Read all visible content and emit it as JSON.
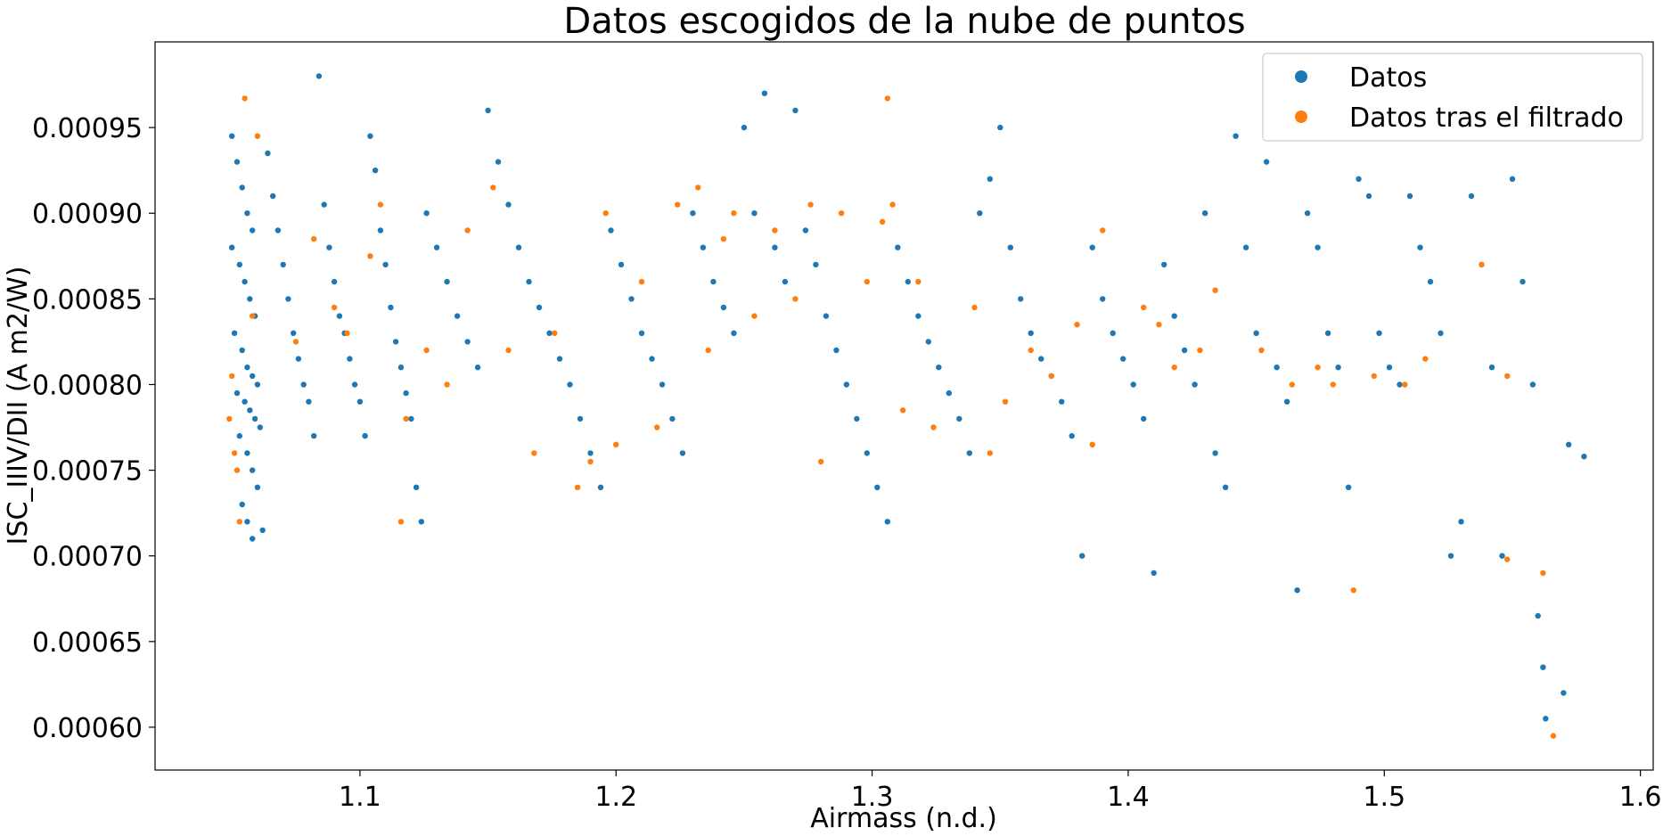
{
  "chart_data": {
    "type": "scatter",
    "title": "Datos escogidos de la nube de puntos",
    "xlabel": "Airmass (n.d.)",
    "ylabel": "ISC_IIIV/DII (A m2/W)",
    "xlim": [
      1.02,
      1.605
    ],
    "ylim": [
      0.000575,
      0.001
    ],
    "xticks": [
      "1.1",
      "1.2",
      "1.3",
      "1.4",
      "1.5",
      "1.6"
    ],
    "yticks": [
      "0.00060",
      "0.00065",
      "0.00070",
      "0.00075",
      "0.00080",
      "0.00085",
      "0.00090",
      "0.00095"
    ],
    "grid": false,
    "legend_position": "top-right",
    "series": [
      {
        "name": "Datos",
        "color": "#1f77b4",
        "points": [
          [
            1.05,
            0.000945
          ],
          [
            1.052,
            0.00093
          ],
          [
            1.054,
            0.000915
          ],
          [
            1.056,
            0.0009
          ],
          [
            1.058,
            0.00089
          ],
          [
            1.05,
            0.00088
          ],
          [
            1.053,
            0.00087
          ],
          [
            1.055,
            0.00086
          ],
          [
            1.057,
            0.00085
          ],
          [
            1.059,
            0.00084
          ],
          [
            1.051,
            0.00083
          ],
          [
            1.054,
            0.00082
          ],
          [
            1.056,
            0.00081
          ],
          [
            1.058,
            0.000805
          ],
          [
            1.06,
            0.0008
          ],
          [
            1.052,
            0.000795
          ],
          [
            1.055,
            0.00079
          ],
          [
            1.057,
            0.000785
          ],
          [
            1.059,
            0.00078
          ],
          [
            1.061,
            0.000775
          ],
          [
            1.053,
            0.00077
          ],
          [
            1.056,
            0.00076
          ],
          [
            1.058,
            0.00075
          ],
          [
            1.06,
            0.00074
          ],
          [
            1.054,
            0.00073
          ],
          [
            1.056,
            0.00072
          ],
          [
            1.058,
            0.00071
          ],
          [
            1.062,
            0.000715
          ],
          [
            1.064,
            0.000935
          ],
          [
            1.066,
            0.00091
          ],
          [
            1.068,
            0.00089
          ],
          [
            1.07,
            0.00087
          ],
          [
            1.072,
            0.00085
          ],
          [
            1.074,
            0.00083
          ],
          [
            1.076,
            0.000815
          ],
          [
            1.078,
            0.0008
          ],
          [
            1.08,
            0.00079
          ],
          [
            1.082,
            0.00077
          ],
          [
            1.084,
            0.00098
          ],
          [
            1.086,
            0.000905
          ],
          [
            1.088,
            0.00088
          ],
          [
            1.09,
            0.00086
          ],
          [
            1.092,
            0.00084
          ],
          [
            1.094,
            0.00083
          ],
          [
            1.096,
            0.000815
          ],
          [
            1.098,
            0.0008
          ],
          [
            1.1,
            0.00079
          ],
          [
            1.102,
            0.00077
          ],
          [
            1.104,
            0.000945
          ],
          [
            1.106,
            0.000925
          ],
          [
            1.108,
            0.00089
          ],
          [
            1.11,
            0.00087
          ],
          [
            1.112,
            0.000845
          ],
          [
            1.114,
            0.000825
          ],
          [
            1.116,
            0.00081
          ],
          [
            1.118,
            0.000795
          ],
          [
            1.12,
            0.00078
          ],
          [
            1.122,
            0.00074
          ],
          [
            1.124,
            0.00072
          ],
          [
            1.126,
            0.0009
          ],
          [
            1.13,
            0.00088
          ],
          [
            1.134,
            0.00086
          ],
          [
            1.138,
            0.00084
          ],
          [
            1.142,
            0.000825
          ],
          [
            1.146,
            0.00081
          ],
          [
            1.15,
            0.00096
          ],
          [
            1.154,
            0.00093
          ],
          [
            1.158,
            0.000905
          ],
          [
            1.162,
            0.00088
          ],
          [
            1.166,
            0.00086
          ],
          [
            1.17,
            0.000845
          ],
          [
            1.174,
            0.00083
          ],
          [
            1.178,
            0.000815
          ],
          [
            1.182,
            0.0008
          ],
          [
            1.186,
            0.00078
          ],
          [
            1.19,
            0.00076
          ],
          [
            1.194,
            0.00074
          ],
          [
            1.198,
            0.00089
          ],
          [
            1.202,
            0.00087
          ],
          [
            1.206,
            0.00085
          ],
          [
            1.21,
            0.00083
          ],
          [
            1.214,
            0.000815
          ],
          [
            1.218,
            0.0008
          ],
          [
            1.222,
            0.00078
          ],
          [
            1.226,
            0.00076
          ],
          [
            1.23,
            0.0009
          ],
          [
            1.234,
            0.00088
          ],
          [
            1.238,
            0.00086
          ],
          [
            1.242,
            0.000845
          ],
          [
            1.246,
            0.00083
          ],
          [
            1.25,
            0.00095
          ],
          [
            1.254,
            0.0009
          ],
          [
            1.258,
            0.00097
          ],
          [
            1.262,
            0.00088
          ],
          [
            1.266,
            0.00086
          ],
          [
            1.27,
            0.00096
          ],
          [
            1.274,
            0.00089
          ],
          [
            1.278,
            0.00087
          ],
          [
            1.282,
            0.00084
          ],
          [
            1.286,
            0.00082
          ],
          [
            1.29,
            0.0008
          ],
          [
            1.294,
            0.00078
          ],
          [
            1.298,
            0.00076
          ],
          [
            1.302,
            0.00074
          ],
          [
            1.306,
            0.00072
          ],
          [
            1.31,
            0.00088
          ],
          [
            1.314,
            0.00086
          ],
          [
            1.318,
            0.00084
          ],
          [
            1.322,
            0.000825
          ],
          [
            1.326,
            0.00081
          ],
          [
            1.33,
            0.000795
          ],
          [
            1.334,
            0.00078
          ],
          [
            1.338,
            0.00076
          ],
          [
            1.342,
            0.0009
          ],
          [
            1.346,
            0.00092
          ],
          [
            1.35,
            0.00095
          ],
          [
            1.354,
            0.00088
          ],
          [
            1.358,
            0.00085
          ],
          [
            1.362,
            0.00083
          ],
          [
            1.366,
            0.000815
          ],
          [
            1.37,
            0.000805
          ],
          [
            1.374,
            0.00079
          ],
          [
            1.378,
            0.00077
          ],
          [
            1.382,
            0.0007
          ],
          [
            1.386,
            0.00088
          ],
          [
            1.39,
            0.00085
          ],
          [
            1.394,
            0.00083
          ],
          [
            1.398,
            0.000815
          ],
          [
            1.402,
            0.0008
          ],
          [
            1.406,
            0.00078
          ],
          [
            1.41,
            0.00069
          ],
          [
            1.414,
            0.00087
          ],
          [
            1.418,
            0.00084
          ],
          [
            1.422,
            0.00082
          ],
          [
            1.426,
            0.0008
          ],
          [
            1.43,
            0.0009
          ],
          [
            1.434,
            0.00076
          ],
          [
            1.438,
            0.00074
          ],
          [
            1.442,
            0.000945
          ],
          [
            1.446,
            0.00088
          ],
          [
            1.45,
            0.00083
          ],
          [
            1.454,
            0.00093
          ],
          [
            1.458,
            0.00081
          ],
          [
            1.462,
            0.00079
          ],
          [
            1.466,
            0.00068
          ],
          [
            1.47,
            0.0009
          ],
          [
            1.474,
            0.00088
          ],
          [
            1.478,
            0.00083
          ],
          [
            1.482,
            0.00081
          ],
          [
            1.486,
            0.00074
          ],
          [
            1.49,
            0.00092
          ],
          [
            1.494,
            0.00091
          ],
          [
            1.498,
            0.00083
          ],
          [
            1.502,
            0.00081
          ],
          [
            1.506,
            0.0008
          ],
          [
            1.51,
            0.00091
          ],
          [
            1.514,
            0.00088
          ],
          [
            1.518,
            0.00086
          ],
          [
            1.522,
            0.00083
          ],
          [
            1.526,
            0.0007
          ],
          [
            1.53,
            0.00072
          ],
          [
            1.534,
            0.00091
          ],
          [
            1.538,
            0.00087
          ],
          [
            1.542,
            0.00081
          ],
          [
            1.546,
            0.0007
          ],
          [
            1.55,
            0.00092
          ],
          [
            1.554,
            0.00086
          ],
          [
            1.558,
            0.0008
          ],
          [
            1.56,
            0.000665
          ],
          [
            1.562,
            0.000635
          ],
          [
            1.563,
            0.000605
          ],
          [
            1.57,
            0.00062
          ],
          [
            1.572,
            0.000765
          ],
          [
            1.578,
            0.000758
          ]
        ]
      },
      {
        "name": "Datos tras el filtrado",
        "color": "#ff7f0e",
        "points": [
          [
            1.05,
            0.000805
          ],
          [
            1.049,
            0.00078
          ],
          [
            1.051,
            0.00076
          ],
          [
            1.052,
            0.00075
          ],
          [
            1.053,
            0.00072
          ],
          [
            1.055,
            0.000967
          ],
          [
            1.06,
            0.000945
          ],
          [
            1.058,
            0.00084
          ],
          [
            1.075,
            0.000825
          ],
          [
            1.082,
            0.000885
          ],
          [
            1.09,
            0.000845
          ],
          [
            1.095,
            0.00083
          ],
          [
            1.104,
            0.000875
          ],
          [
            1.108,
            0.000905
          ],
          [
            1.116,
            0.00072
          ],
          [
            1.118,
            0.00078
          ],
          [
            1.126,
            0.00082
          ],
          [
            1.134,
            0.0008
          ],
          [
            1.142,
            0.00089
          ],
          [
            1.152,
            0.000915
          ],
          [
            1.158,
            0.00082
          ],
          [
            1.168,
            0.00076
          ],
          [
            1.176,
            0.00083
          ],
          [
            1.185,
            0.00074
          ],
          [
            1.19,
            0.000755
          ],
          [
            1.196,
            0.0009
          ],
          [
            1.2,
            0.000765
          ],
          [
            1.21,
            0.00086
          ],
          [
            1.216,
            0.000775
          ],
          [
            1.224,
            0.000905
          ],
          [
            1.232,
            0.000915
          ],
          [
            1.236,
            0.00082
          ],
          [
            1.242,
            0.000885
          ],
          [
            1.246,
            0.0009
          ],
          [
            1.254,
            0.00084
          ],
          [
            1.262,
            0.00089
          ],
          [
            1.27,
            0.00085
          ],
          [
            1.276,
            0.000905
          ],
          [
            1.28,
            0.000755
          ],
          [
            1.288,
            0.0009
          ],
          [
            1.298,
            0.00086
          ],
          [
            1.304,
            0.000895
          ],
          [
            1.306,
            0.000967
          ],
          [
            1.308,
            0.000905
          ],
          [
            1.312,
            0.000785
          ],
          [
            1.318,
            0.00086
          ],
          [
            1.324,
            0.000775
          ],
          [
            1.34,
            0.000845
          ],
          [
            1.346,
            0.00076
          ],
          [
            1.352,
            0.00079
          ],
          [
            1.362,
            0.00082
          ],
          [
            1.37,
            0.000805
          ],
          [
            1.38,
            0.000835
          ],
          [
            1.386,
            0.000765
          ],
          [
            1.39,
            0.00089
          ],
          [
            1.406,
            0.000845
          ],
          [
            1.412,
            0.000835
          ],
          [
            1.418,
            0.00081
          ],
          [
            1.428,
            0.00082
          ],
          [
            1.434,
            0.000855
          ],
          [
            1.452,
            0.00082
          ],
          [
            1.464,
            0.0008
          ],
          [
            1.474,
            0.00081
          ],
          [
            1.48,
            0.0008
          ],
          [
            1.488,
            0.00068
          ],
          [
            1.496,
            0.000805
          ],
          [
            1.508,
            0.0008
          ],
          [
            1.516,
            0.000815
          ],
          [
            1.538,
            0.00087
          ],
          [
            1.548,
            0.000805
          ],
          [
            1.548,
            0.000698
          ],
          [
            1.562,
            0.00069
          ],
          [
            1.566,
            0.000595
          ]
        ]
      }
    ]
  }
}
